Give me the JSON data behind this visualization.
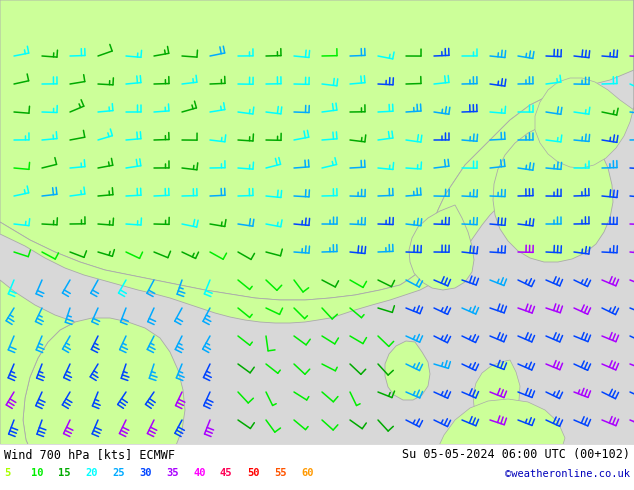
{
  "title_left": "Wind 700 hPa [kts] ECMWF",
  "title_right": "Su 05-05-2024 06:00 UTC (00+102)",
  "credit": "©weatheronline.co.uk",
  "legend_values": [
    5,
    10,
    15,
    20,
    25,
    30,
    35,
    40,
    45,
    50,
    55,
    60
  ],
  "legend_colors": [
    "#aaff00",
    "#00ee00",
    "#00aa00",
    "#00ffff",
    "#00aaff",
    "#0044ff",
    "#aa00ff",
    "#ff00ff",
    "#ff0055",
    "#ff0000",
    "#ff5500",
    "#ff9900"
  ],
  "bg_color": "#ffffff",
  "land_color": "#ccff99",
  "sea_color": "#d8d8d8",
  "coast_color": "#aaaaaa",
  "bottom_bar": "#ffffff",
  "figsize": [
    6.34,
    4.9
  ],
  "dpi": 100
}
